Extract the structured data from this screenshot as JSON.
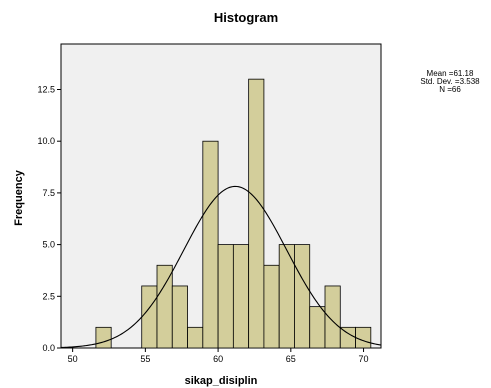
{
  "chart_data": {
    "type": "bar",
    "title": "Histogram",
    "xlabel": "sikap_disiplin",
    "ylabel": "Frequency",
    "xlim": [
      49.2,
      71.2
    ],
    "ylim": [
      0,
      14.7
    ],
    "xticks": [
      50,
      55,
      60,
      65,
      70
    ],
    "xtick_labels": [
      "50",
      "55",
      "60",
      "65",
      "70"
    ],
    "yticks": [
      0,
      2.5,
      5,
      7.5,
      10,
      12.5
    ],
    "ytick_labels": [
      "0.0",
      "2.5",
      "5.0",
      "7.5",
      "10.0",
      "12.5"
    ],
    "bin_width": 1.05,
    "bins": [
      {
        "start": 51.6,
        "value": 1
      },
      {
        "start": 54.75,
        "value": 3
      },
      {
        "start": 55.8,
        "value": 4
      },
      {
        "start": 56.85,
        "value": 3
      },
      {
        "start": 57.9,
        "value": 1
      },
      {
        "start": 58.95,
        "value": 10
      },
      {
        "start": 60.0,
        "value": 5
      },
      {
        "start": 61.05,
        "value": 5
      },
      {
        "start": 62.1,
        "value": 13
      },
      {
        "start": 63.15,
        "value": 4
      },
      {
        "start": 64.2,
        "value": 5
      },
      {
        "start": 65.25,
        "value": 5
      },
      {
        "start": 66.3,
        "value": 2
      },
      {
        "start": 67.35,
        "value": 3
      },
      {
        "start": 68.4,
        "value": 1
      },
      {
        "start": 69.45,
        "value": 1
      }
    ],
    "normal_curve": {
      "mean": 61.18,
      "sd": 3.538,
      "n": 66
    },
    "stats_text": [
      "Mean =61.18",
      "Std. Dev. =3.538",
      "N =66"
    ],
    "colors": {
      "bar_fill": "#d3ce9b",
      "bar_stroke": "#000000",
      "plot_bg": "#f0f0f0",
      "curve": "#000000"
    }
  }
}
